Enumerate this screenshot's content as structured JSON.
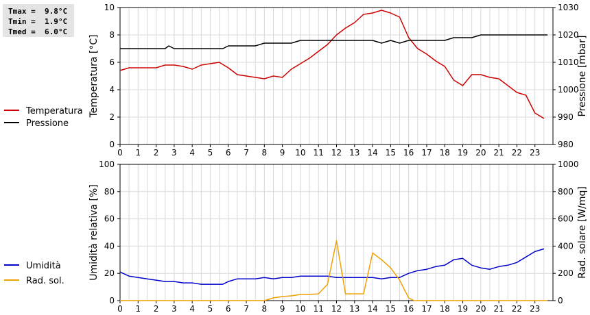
{
  "stats": [
    {
      "label": "Tmax",
      "value": "9.8°C"
    },
    {
      "label": "Tmin",
      "value": "1.9°C"
    },
    {
      "label": "Tmed",
      "value": "6.0°C"
    }
  ],
  "chart_data": [
    {
      "type": "line",
      "xlabel": "",
      "x_ticks": [
        0,
        1,
        2,
        3,
        4,
        5,
        6,
        7,
        8,
        9,
        10,
        11,
        12,
        13,
        14,
        15,
        16,
        17,
        18,
        19,
        20,
        21,
        22,
        23
      ],
      "xlim": [
        0,
        24
      ],
      "ylabel": "Temperatura [°C]",
      "ylim": [
        0,
        10
      ],
      "y_ticks": [
        0,
        2,
        4,
        6,
        8,
        10
      ],
      "y2label": "Pressione [mbar]",
      "y2lim": [
        980,
        1030
      ],
      "y2_ticks": [
        980,
        990,
        1000,
        1010,
        1020,
        1030
      ],
      "grid": true,
      "legend_position": "left",
      "series": [
        {
          "name": "Temperatura",
          "axis": "left",
          "color": "#cc0000",
          "points": [
            [
              0,
              5.4
            ],
            [
              0.5,
              5.6
            ],
            [
              1,
              5.6
            ],
            [
              1.5,
              5.6
            ],
            [
              2,
              5.6
            ],
            [
              2.5,
              5.8
            ],
            [
              3,
              5.8
            ],
            [
              3.5,
              5.7
            ],
            [
              4,
              5.5
            ],
            [
              4.5,
              5.8
            ],
            [
              5,
              5.9
            ],
            [
              5.5,
              6.0
            ],
            [
              6,
              5.6
            ],
            [
              6.5,
              5.1
            ],
            [
              7,
              5.0
            ],
            [
              7.5,
              4.9
            ],
            [
              8,
              4.8
            ],
            [
              8.5,
              5.0
            ],
            [
              9,
              4.9
            ],
            [
              9.5,
              5.5
            ],
            [
              10,
              5.9
            ],
            [
              10.5,
              6.3
            ],
            [
              11,
              6.8
            ],
            [
              11.5,
              7.3
            ],
            [
              12,
              8.0
            ],
            [
              12.5,
              8.5
            ],
            [
              13,
              8.9
            ],
            [
              13.5,
              9.5
            ],
            [
              14,
              9.6
            ],
            [
              14.5,
              9.8
            ],
            [
              15,
              9.6
            ],
            [
              15.5,
              9.3
            ],
            [
              16,
              7.8
            ],
            [
              16.5,
              7.0
            ],
            [
              17,
              6.6
            ],
            [
              17.5,
              6.1
            ],
            [
              18,
              5.7
            ],
            [
              18.5,
              4.7
            ],
            [
              19,
              4.3
            ],
            [
              19.5,
              5.1
            ],
            [
              20,
              5.1
            ],
            [
              20.5,
              4.9
            ],
            [
              21,
              4.8
            ],
            [
              21.5,
              4.3
            ],
            [
              22,
              3.8
            ],
            [
              22.5,
              3.6
            ],
            [
              23,
              2.3
            ],
            [
              23.5,
              1.9
            ]
          ]
        },
        {
          "name": "Pressione",
          "axis": "right",
          "color": "#000000",
          "points": [
            [
              0,
              1015
            ],
            [
              1,
              1015
            ],
            [
              2,
              1015
            ],
            [
              2.5,
              1015
            ],
            [
              2.7,
              1016
            ],
            [
              3,
              1015
            ],
            [
              4,
              1015
            ],
            [
              5,
              1015
            ],
            [
              5.7,
              1015
            ],
            [
              6,
              1016
            ],
            [
              7,
              1016
            ],
            [
              7.5,
              1016
            ],
            [
              8,
              1017
            ],
            [
              9,
              1017
            ],
            [
              9.5,
              1017
            ],
            [
              10,
              1018
            ],
            [
              11,
              1018
            ],
            [
              12,
              1018
            ],
            [
              13,
              1018
            ],
            [
              14,
              1018
            ],
            [
              14.5,
              1017
            ],
            [
              15,
              1018
            ],
            [
              15.5,
              1017
            ],
            [
              16,
              1018
            ],
            [
              17,
              1018
            ],
            [
              18,
              1018
            ],
            [
              18.5,
              1019
            ],
            [
              19,
              1019
            ],
            [
              19.5,
              1019
            ],
            [
              20,
              1020
            ],
            [
              21,
              1020
            ],
            [
              22,
              1020
            ],
            [
              23,
              1020
            ],
            [
              23.7,
              1020
            ]
          ]
        }
      ]
    },
    {
      "type": "line",
      "xlabel": "",
      "x_ticks": [
        0,
        1,
        2,
        3,
        4,
        5,
        6,
        7,
        8,
        9,
        10,
        11,
        12,
        13,
        14,
        15,
        16,
        17,
        18,
        19,
        20,
        21,
        22,
        23
      ],
      "xlim": [
        0,
        24
      ],
      "ylabel": "Umidità relativa [%]",
      "ylim": [
        0,
        100
      ],
      "y_ticks": [
        0,
        20,
        40,
        60,
        80,
        100
      ],
      "y2label": "Rad. solare [W/mq]",
      "y2lim": [
        0,
        1000
      ],
      "y2_ticks": [
        0,
        200,
        400,
        600,
        800,
        1000
      ],
      "grid": true,
      "legend_position": "left",
      "series": [
        {
          "name": "Umidità",
          "axis": "left",
          "color": "#0000cc",
          "points": [
            [
              0,
              21
            ],
            [
              0.5,
              18
            ],
            [
              1,
              17
            ],
            [
              1.5,
              16
            ],
            [
              2,
              15
            ],
            [
              2.5,
              14
            ],
            [
              3,
              14
            ],
            [
              3.5,
              13
            ],
            [
              4,
              13
            ],
            [
              4.5,
              12
            ],
            [
              5,
              12
            ],
            [
              5.7,
              12
            ],
            [
              6,
              14
            ],
            [
              6.5,
              16
            ],
            [
              7,
              16
            ],
            [
              7.5,
              16
            ],
            [
              8,
              17
            ],
            [
              8.5,
              16
            ],
            [
              9,
              17
            ],
            [
              9.5,
              17
            ],
            [
              10,
              18
            ],
            [
              11,
              18
            ],
            [
              11.5,
              18
            ],
            [
              12,
              17
            ],
            [
              12.5,
              17
            ],
            [
              13,
              17
            ],
            [
              13.5,
              17
            ],
            [
              14,
              17
            ],
            [
              14.5,
              16
            ],
            [
              15,
              17
            ],
            [
              15.5,
              17
            ],
            [
              16,
              20
            ],
            [
              16.5,
              22
            ],
            [
              17,
              23
            ],
            [
              17.5,
              25
            ],
            [
              18,
              26
            ],
            [
              18.5,
              30
            ],
            [
              19,
              31
            ],
            [
              19.5,
              26
            ],
            [
              20,
              24
            ],
            [
              20.5,
              23
            ],
            [
              21,
              25
            ],
            [
              21.5,
              26
            ],
            [
              22,
              28
            ],
            [
              22.5,
              32
            ],
            [
              23,
              36
            ],
            [
              23.5,
              38
            ]
          ]
        },
        {
          "name": "Rad. sol.",
          "axis": "right",
          "color": "#f0a000",
          "points": [
            [
              0,
              0
            ],
            [
              8,
              0
            ],
            [
              8.5,
              20
            ],
            [
              9,
              30
            ],
            [
              9.5,
              35
            ],
            [
              10,
              45
            ],
            [
              10.5,
              45
            ],
            [
              11,
              50
            ],
            [
              11.5,
              120
            ],
            [
              12,
              440
            ],
            [
              12.5,
              50
            ],
            [
              13,
              50
            ],
            [
              13.5,
              50
            ],
            [
              14,
              350
            ],
            [
              14.5,
              300
            ],
            [
              15,
              240
            ],
            [
              15.5,
              150
            ],
            [
              16,
              20
            ],
            [
              16.3,
              0
            ],
            [
              23.7,
              0
            ]
          ]
        }
      ]
    }
  ]
}
